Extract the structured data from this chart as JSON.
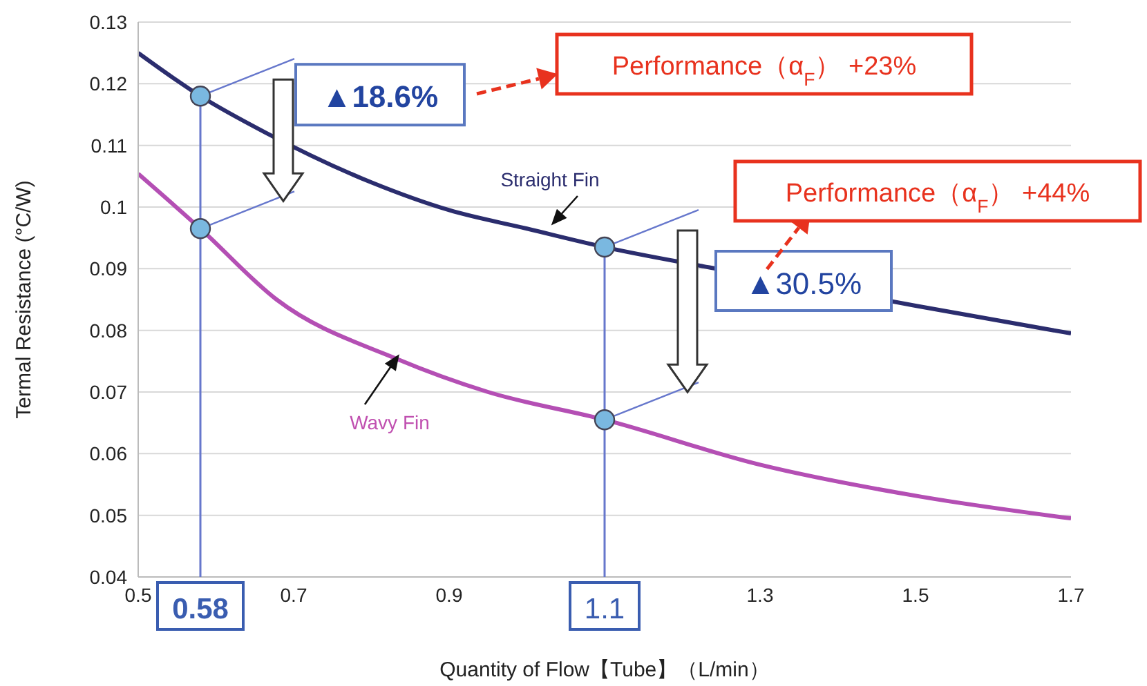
{
  "chart_data": {
    "type": "line",
    "xlabel": "Quantity of Flow【Tube】（L/min）",
    "ylabel": "Termal Resistance (°C/W)",
    "series": [
      {
        "name": "Straight Fin",
        "color": "#2b2d6e",
        "x": [
          0.5,
          0.58,
          0.665,
          0.8,
          0.9,
          1.0,
          1.1,
          1.235,
          1.5,
          1.7
        ],
        "values": [
          0.125,
          0.118,
          0.112,
          0.104,
          0.0995,
          0.0965,
          0.0935,
          0.0902,
          0.084,
          0.0795
        ]
      },
      {
        "name": "Wavy Fin",
        "color": "#b44fb4",
        "x": [
          0.5,
          0.58,
          0.678,
          0.832,
          0.95,
          1.1,
          1.3,
          1.508,
          1.7
        ],
        "values": [
          0.1054,
          0.0965,
          0.085,
          0.0754,
          0.07,
          0.0655,
          0.0582,
          0.053,
          0.0495
        ]
      },
      {
        "type": "scatter",
        "color": "#7ab8e0",
        "x": [
          0.58,
          0.58,
          1.1,
          1.1
        ],
        "values": [
          0.118,
          0.0965,
          0.0935,
          0.0655
        ]
      }
    ],
    "xlim": [
      0.5,
      1.7
    ],
    "xticks": [
      0.5,
      0.7,
      0.9,
      1.3,
      1.5,
      1.7
    ],
    "ylim": [
      0.04,
      0.13
    ],
    "yticks": [
      0.04,
      0.05,
      0.06,
      0.07,
      0.08,
      0.09,
      0.1,
      0.11,
      0.12,
      0.13
    ],
    "grid": "y",
    "legend": false,
    "ref_lines": [
      {
        "axis": "x",
        "value": 0.58,
        "label": "0.58",
        "color": "#6677cc"
      },
      {
        "axis": "x",
        "value": 1.1,
        "label": "1.1",
        "color": "#6677cc"
      }
    ],
    "annotations": [
      {
        "text": "▲18.6%",
        "x": 0.58,
        "y": 0.118
      },
      "▲30.5%",
      "Performance（α$_{F}$） +23%",
      "Performance（α$_{F}$） +44%"
    ]
  }
}
